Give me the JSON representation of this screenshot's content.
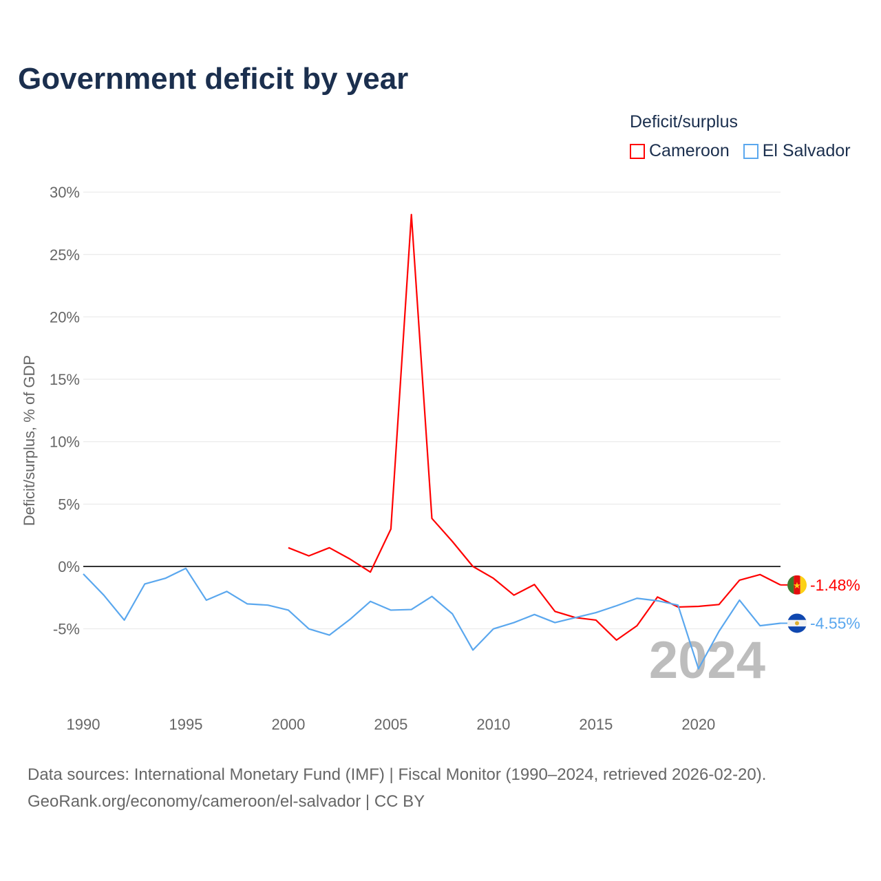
{
  "title": "Government deficit by year",
  "legend": {
    "title": "Deficit/surplus",
    "items": [
      {
        "label": "Cameroon",
        "color": "#ff0000"
      },
      {
        "label": "El Salvador",
        "color": "#5aa7ee"
      }
    ]
  },
  "footer": {
    "line1": "Data sources: International Monetary Fund (IMF) | Fiscal Monitor (1990–2024, retrieved 2026-02-20).",
    "line2": "GeoRank.org/economy/cameroon/el-salvador | CC BY"
  },
  "chart_data": {
    "type": "line",
    "title": "Government deficit by year",
    "xlabel": "",
    "ylabel": "Deficit/surplus, % of GDP",
    "xlim": [
      1990,
      2024
    ],
    "ylim": [
      -10,
      30
    ],
    "x_ticks": [
      "1990",
      "1995",
      "2000",
      "2005",
      "2010",
      "2015",
      "2020"
    ],
    "y_ticks": [
      "30%",
      "25%",
      "20%",
      "15%",
      "10%",
      "5%",
      "0%",
      "-5%"
    ],
    "y_tick_values": [
      30,
      25,
      20,
      15,
      10,
      5,
      0,
      -5
    ],
    "grid": true,
    "watermark_year": "2024",
    "series": [
      {
        "name": "Cameroon",
        "color": "#ff0000",
        "end_label": "-1.48%",
        "x": [
          2000,
          2001,
          2002,
          2003,
          2004,
          2005,
          2006,
          2007,
          2008,
          2009,
          2010,
          2011,
          2012,
          2013,
          2014,
          2015,
          2016,
          2017,
          2018,
          2019,
          2020,
          2021,
          2022,
          2023,
          2024
        ],
        "values": [
          1.5,
          0.85,
          1.5,
          0.6,
          -0.45,
          3.0,
          28.2,
          3.85,
          2.0,
          0.0,
          -0.95,
          -2.3,
          -1.45,
          -3.6,
          -4.1,
          -4.3,
          -5.9,
          -4.75,
          -2.45,
          -3.25,
          -3.2,
          -3.05,
          -1.1,
          -0.65,
          -1.48
        ]
      },
      {
        "name": "El Salvador",
        "color": "#5aa7ee",
        "end_label": "-4.55%",
        "x": [
          1990,
          1991,
          1992,
          1993,
          1994,
          1995,
          1996,
          1997,
          1998,
          1999,
          2000,
          2001,
          2002,
          2003,
          2004,
          2005,
          2006,
          2007,
          2008,
          2009,
          2010,
          2011,
          2012,
          2013,
          2014,
          2015,
          2016,
          2017,
          2018,
          2019,
          2020,
          2021,
          2022,
          2023,
          2024
        ],
        "values": [
          -0.6,
          -2.3,
          -4.3,
          -1.4,
          -0.95,
          -0.15,
          -2.7,
          -2.0,
          -3.0,
          -3.1,
          -3.5,
          -5.0,
          -5.5,
          -4.25,
          -2.8,
          -3.5,
          -3.45,
          -2.4,
          -3.8,
          -6.7,
          -5.0,
          -4.5,
          -3.85,
          -4.5,
          -4.1,
          -3.7,
          -3.15,
          -2.55,
          -2.75,
          -3.1,
          -8.2,
          -5.2,
          -2.7,
          -4.75,
          -4.55
        ]
      }
    ]
  }
}
